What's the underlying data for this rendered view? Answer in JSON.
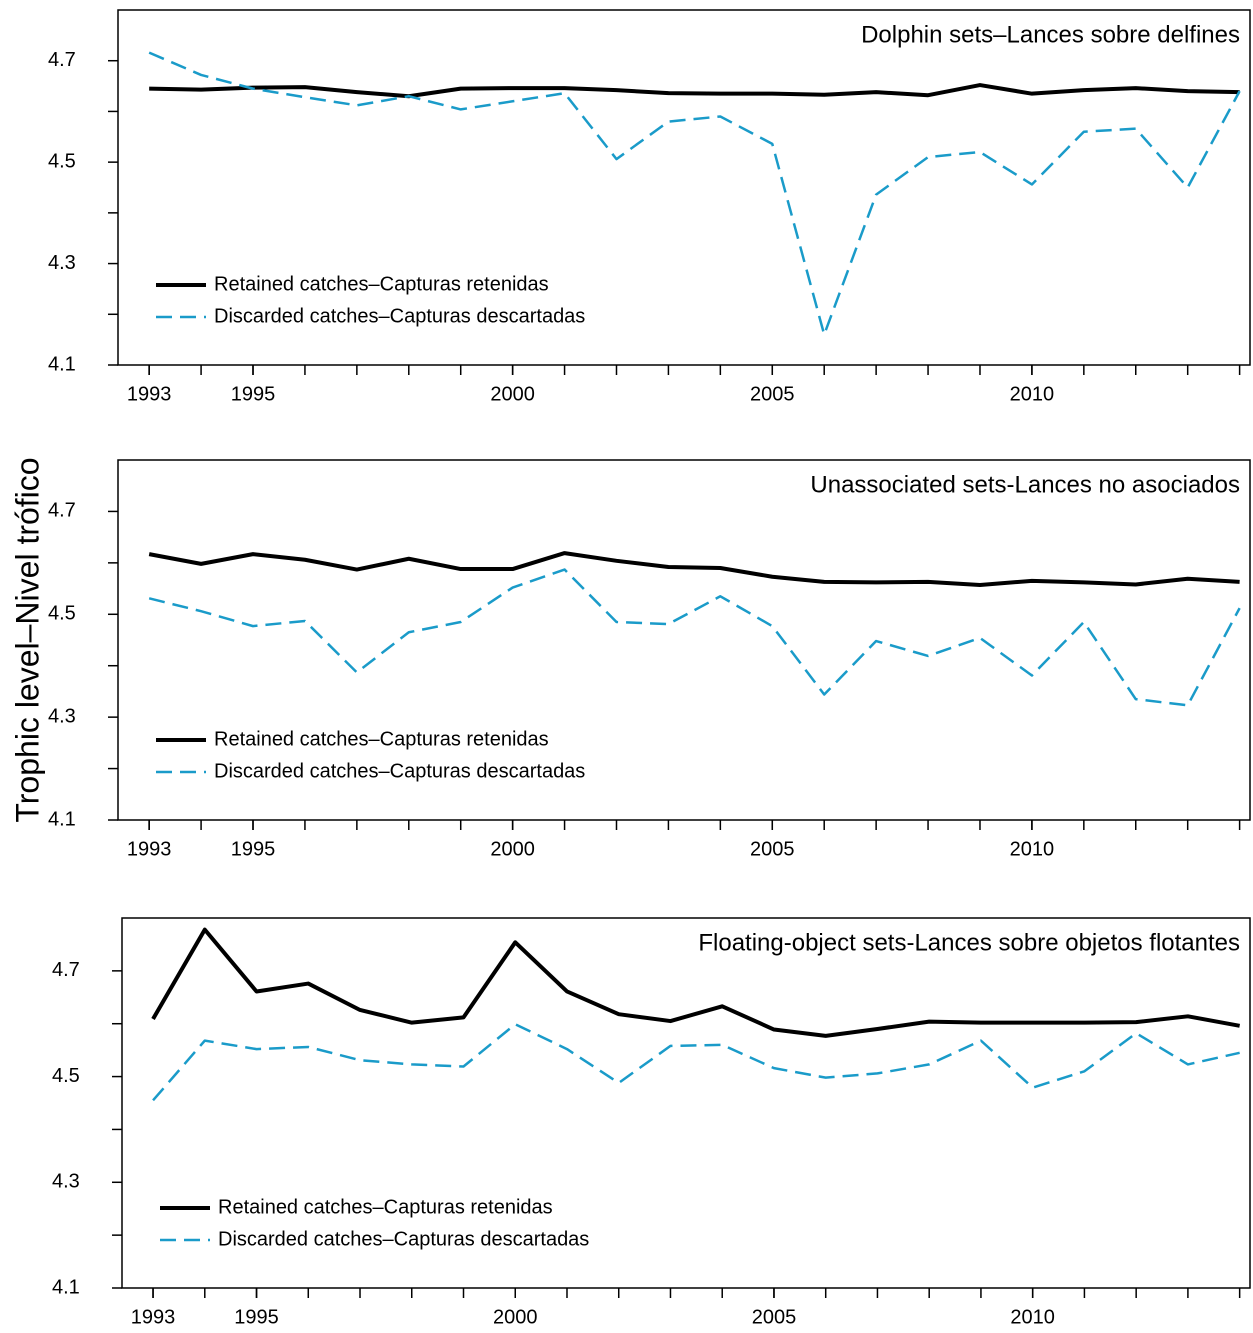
{
  "chart_data": [
    {
      "type": "line",
      "title": "Dolphin sets–Lances sobre delfines",
      "x": [
        1993,
        1994,
        1995,
        1996,
        1997,
        1998,
        1999,
        2000,
        2001,
        2002,
        2003,
        2004,
        2005,
        2006,
        2007,
        2008,
        2009,
        2010,
        2011,
        2012,
        2013,
        2014
      ],
      "series": [
        {
          "name": "Retained catches–Capturas retenidas",
          "color": "#000000",
          "linestyle": "solid",
          "values": [
            4.645,
            4.643,
            4.647,
            4.648,
            4.638,
            4.63,
            4.645,
            4.646,
            4.646,
            4.642,
            4.636,
            4.635,
            4.635,
            4.633,
            4.638,
            4.632,
            4.652,
            4.635,
            4.642,
            4.646,
            4.64,
            4.638
          ]
        },
        {
          "name": "Discarded catches–Capturas descartadas",
          "color": "#1a9bc9",
          "linestyle": "dashed",
          "values": [
            4.716,
            4.672,
            4.645,
            4.628,
            4.612,
            4.63,
            4.604,
            4.62,
            4.636,
            4.506,
            4.58,
            4.59,
            4.536,
            4.16,
            4.436,
            4.51,
            4.52,
            4.456,
            4.56,
            4.566,
            4.45,
            4.64
          ]
        }
      ],
      "xlim": [
        1992.4,
        2014.2
      ],
      "ylim": [
        4.1,
        4.8
      ],
      "xticks": [
        1993,
        1995,
        2000,
        2005,
        2010
      ],
      "yticks": [
        4.1,
        4.3,
        4.5,
        4.7
      ],
      "yminorticks": [
        4.2,
        4.4,
        4.6
      ],
      "legend": "lower left"
    },
    {
      "type": "line",
      "title": "Unassociated sets-Lances no asociados",
      "ylabel": "Trophic level–Nivel trófico",
      "x": [
        1993,
        1994,
        1995,
        1996,
        1997,
        1998,
        1999,
        2000,
        2001,
        2002,
        2003,
        2004,
        2005,
        2006,
        2007,
        2008,
        2009,
        2010,
        2011,
        2012,
        2013,
        2014
      ],
      "series": [
        {
          "name": "Retained catches–Capturas retenidas",
          "color": "#000000",
          "linestyle": "solid",
          "values": [
            4.617,
            4.598,
            4.617,
            4.606,
            4.587,
            4.608,
            4.588,
            4.588,
            4.619,
            4.604,
            4.592,
            4.59,
            4.573,
            4.563,
            4.562,
            4.563,
            4.557,
            4.565,
            4.562,
            4.558,
            4.569,
            4.563
          ]
        },
        {
          "name": "Discarded catches–Capturas descartadas",
          "color": "#1a9bc9",
          "linestyle": "dashed",
          "values": [
            4.531,
            4.506,
            4.477,
            4.487,
            4.387,
            4.465,
            4.485,
            4.552,
            4.587,
            4.485,
            4.481,
            4.535,
            4.477,
            4.344,
            4.448,
            4.419,
            4.454,
            4.381,
            4.485,
            4.335,
            4.323,
            4.512
          ]
        }
      ],
      "xlim": [
        1992.4,
        2014.2
      ],
      "ylim": [
        4.1,
        4.8
      ],
      "xticks": [
        1993,
        1995,
        2000,
        2005,
        2010
      ],
      "yticks": [
        4.1,
        4.3,
        4.5,
        4.7
      ],
      "yminorticks": [
        4.2,
        4.4,
        4.6
      ],
      "legend": "lower left"
    },
    {
      "type": "line",
      "title": "Floating-object sets-Lances sobre objetos flotantes",
      "x": [
        1993,
        1994,
        1995,
        1996,
        1997,
        1998,
        1999,
        2000,
        2001,
        2002,
        2003,
        2004,
        2005,
        2006,
        2007,
        2008,
        2009,
        2010,
        2011,
        2012,
        2013,
        2014
      ],
      "series": [
        {
          "name": "Retained catches–Capturas retenidas",
          "color": "#000000",
          "linestyle": "solid",
          "values": [
            4.609,
            4.778,
            4.661,
            4.676,
            4.626,
            4.602,
            4.612,
            4.754,
            4.661,
            4.618,
            4.605,
            4.633,
            4.589,
            4.577,
            4.59,
            4.604,
            4.602,
            4.602,
            4.602,
            4.603,
            4.614,
            4.596
          ]
        },
        {
          "name": "Discarded catches–Capturas descartadas",
          "color": "#1a9bc9",
          "linestyle": "dashed",
          "values": [
            4.455,
            4.568,
            4.552,
            4.556,
            4.531,
            4.523,
            4.519,
            4.599,
            4.552,
            4.488,
            4.558,
            4.56,
            4.516,
            4.498,
            4.506,
            4.523,
            4.568,
            4.479,
            4.51,
            4.582,
            4.523,
            4.545
          ]
        }
      ],
      "xlim": [
        1992.4,
        2014.2
      ],
      "ylim": [
        4.1,
        4.8
      ],
      "xticks": [
        1993,
        1995,
        2000,
        2005,
        2010
      ],
      "yticks": [
        4.1,
        4.3,
        4.5,
        4.7
      ],
      "yminorticks": [
        4.2,
        4.4,
        4.6
      ],
      "legend": "lower left"
    }
  ]
}
